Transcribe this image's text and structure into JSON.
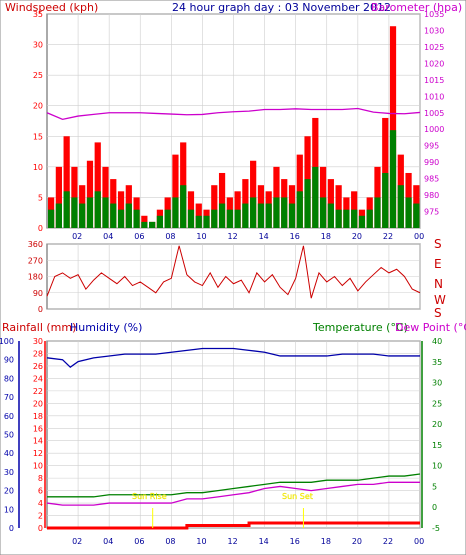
{
  "header": {
    "windspeed_label": "Windspeed (kph)",
    "title": "24 hour graph day : 03 November 2012",
    "barometer_label": "Barometer (hpa)"
  },
  "middle": {
    "compass_labels": [
      "S",
      "E",
      "N",
      "W",
      "S"
    ]
  },
  "lower_header": {
    "rainfall_label": "Rainfall (mm)",
    "humidity_label": "Humidity (%)",
    "temperature_label": "Temperature (°C)",
    "dewpoint_label": "Dew Point (°C)"
  },
  "annotations": {
    "sunrise": "Sun Rise",
    "sunset": "Sun Set"
  },
  "colors": {
    "wind_gust": "#ff0000",
    "wind_avg": "#008000",
    "wind_dir": "#cc0000",
    "barometer": "#cc00cc",
    "humidity": "#0000aa",
    "temperature": "#008000",
    "dewpoint": "#cc00cc",
    "rain": "#ff0000",
    "sun_marker": "#ffff00",
    "grid": "#cfcfcf",
    "title": "#000099"
  },
  "chart_data": [
    {
      "id": "wind",
      "type": "bar",
      "grid": true,
      "x_ticks": [
        "02",
        "04",
        "06",
        "08",
        "10",
        "12",
        "14",
        "16",
        "18",
        "20",
        "22",
        "00"
      ],
      "xlim_hours": [
        0,
        24
      ],
      "left_axis": {
        "label": "Windspeed (kph)",
        "ylim": [
          0,
          35
        ],
        "ticks": [
          0,
          5,
          10,
          15,
          20,
          25,
          30,
          35
        ]
      },
      "right_axis": {
        "label": "Barometer (hpa)",
        "ylim": [
          970,
          1035
        ],
        "ticks": [
          975,
          980,
          985,
          990,
          995,
          1000,
          1005,
          1010,
          1015,
          1020,
          1025,
          1030,
          1035
        ]
      },
      "series": [
        {
          "name": "Gust",
          "hours": [
            0.0,
            0.5,
            1.0,
            1.5,
            2.0,
            2.5,
            3.0,
            3.5,
            4.0,
            4.5,
            5.0,
            5.5,
            6.0,
            6.5,
            7.0,
            7.5,
            8.0,
            8.5,
            9.0,
            9.5,
            10.0,
            10.5,
            11.0,
            11.5,
            12.0,
            12.5,
            13.0,
            13.5,
            14.0,
            14.5,
            15.0,
            15.5,
            16.0,
            16.5,
            17.0,
            17.5,
            18.0,
            18.5,
            19.0,
            19.5,
            20.0,
            20.5,
            21.0,
            21.5,
            22.0,
            22.5,
            23.0,
            23.5
          ],
          "values": [
            5,
            10,
            15,
            10,
            7,
            11,
            14,
            10,
            8,
            6,
            7,
            5,
            2,
            1,
            3,
            5,
            12,
            14,
            6,
            4,
            3,
            7,
            9,
            5,
            6,
            8,
            11,
            7,
            6,
            10,
            8,
            7,
            12,
            15,
            18,
            10,
            8,
            7,
            5,
            6,
            3,
            5,
            10,
            18,
            33,
            12,
            9,
            7
          ]
        },
        {
          "name": "Average",
          "hours": [
            0.0,
            0.5,
            1.0,
            1.5,
            2.0,
            2.5,
            3.0,
            3.5,
            4.0,
            4.5,
            5.0,
            5.5,
            6.0,
            6.5,
            7.0,
            7.5,
            8.0,
            8.5,
            9.0,
            9.5,
            10.0,
            10.5,
            11.0,
            11.5,
            12.0,
            12.5,
            13.0,
            13.5,
            14.0,
            14.5,
            15.0,
            15.5,
            16.0,
            16.5,
            17.0,
            17.5,
            18.0,
            18.5,
            19.0,
            19.5,
            20.0,
            20.5,
            21.0,
            21.5,
            22.0,
            22.5,
            23.0,
            23.5
          ],
          "values": [
            3,
            4,
            6,
            5,
            4,
            5,
            6,
            5,
            4,
            3,
            4,
            3,
            1,
            1,
            2,
            3,
            5,
            7,
            3,
            2,
            2,
            3,
            4,
            3,
            3,
            4,
            5,
            4,
            4,
            5,
            5,
            4,
            6,
            8,
            10,
            5,
            4,
            3,
            3,
            3,
            2,
            3,
            5,
            9,
            16,
            7,
            5,
            4
          ]
        },
        {
          "name": "Barometer",
          "axis": "right",
          "hours": [
            0,
            1,
            2,
            3,
            4,
            5,
            6,
            7,
            8,
            9,
            10,
            11,
            12,
            13,
            14,
            15,
            16,
            17,
            18,
            19,
            20,
            21,
            22,
            23,
            24
          ],
          "values": [
            1005,
            1003,
            1004,
            1004.5,
            1005,
            1005,
            1005,
            1004.8,
            1004.6,
            1004.4,
            1004.5,
            1005,
            1005.3,
            1005.5,
            1006,
            1006,
            1006.2,
            1006,
            1006,
            1006,
            1006.3,
            1005.2,
            1004.8,
            1004.7,
            1005.1
          ]
        }
      ]
    },
    {
      "id": "direction",
      "type": "line",
      "grid": true,
      "left_axis": {
        "ylim": [
          0,
          360
        ],
        "ticks": [
          0,
          90,
          180,
          270,
          360
        ]
      },
      "series": [
        {
          "name": "Wind Direction",
          "hours": [
            0.0,
            0.5,
            1.0,
            1.5,
            2.0,
            2.5,
            3.0,
            3.5,
            4.0,
            4.5,
            5.0,
            5.5,
            6.0,
            6.5,
            7.0,
            7.5,
            8.0,
            8.5,
            9.0,
            9.5,
            10.0,
            10.5,
            11.0,
            11.5,
            12.0,
            12.5,
            13.0,
            13.5,
            14.0,
            14.5,
            15.0,
            15.5,
            16.0,
            16.5,
            17.0,
            17.5,
            18.0,
            18.5,
            19.0,
            19.5,
            20.0,
            20.5,
            21.0,
            21.5,
            22.0,
            22.5,
            23.0,
            23.5,
            24.0
          ],
          "values": [
            70,
            180,
            200,
            170,
            190,
            110,
            160,
            200,
            170,
            140,
            180,
            130,
            150,
            120,
            90,
            150,
            170,
            350,
            190,
            150,
            130,
            200,
            120,
            180,
            140,
            160,
            90,
            200,
            150,
            190,
            120,
            80,
            170,
            350,
            60,
            200,
            150,
            180,
            130,
            170,
            100,
            150,
            190,
            230,
            200,
            220,
            180,
            110,
            90
          ]
        }
      ]
    },
    {
      "id": "climate",
      "type": "line",
      "grid": true,
      "x_ticks": [
        "02",
        "04",
        "06",
        "08",
        "10",
        "12",
        "14",
        "16",
        "18",
        "20",
        "22",
        "00"
      ],
      "xlim_hours": [
        0,
        24
      ],
      "left_axis": {
        "label": "Rainfall (mm)",
        "ylim": [
          0,
          30
        ],
        "ticks": [
          0,
          2,
          4,
          6,
          8,
          10,
          12,
          14,
          16,
          18,
          20,
          22,
          24,
          26,
          28,
          30
        ]
      },
      "humidity_axis": {
        "label": "Humidity (%)",
        "ylim": [
          0,
          100
        ],
        "ticks": [
          0,
          10,
          20,
          30,
          40,
          50,
          60,
          70,
          80,
          90,
          100
        ]
      },
      "right_axis": {
        "label": "Temperature (°C)",
        "ylim": [
          -5,
          40
        ],
        "ticks": [
          -5,
          0,
          5,
          10,
          15,
          20,
          25,
          30,
          35,
          40
        ]
      },
      "series": [
        {
          "name": "Humidity",
          "hours": [
            0,
            1,
            1.5,
            2,
            3,
            4,
            5,
            6,
            7,
            8,
            9,
            10,
            11,
            12,
            13,
            14,
            15,
            16,
            17,
            18,
            19,
            20,
            21,
            22,
            23,
            24
          ],
          "values": [
            91,
            90,
            86,
            89,
            91,
            92,
            93,
            93,
            93,
            94,
            95,
            96,
            96,
            96,
            95,
            94,
            92,
            92,
            92,
            92,
            93,
            93,
            93,
            92,
            92,
            92
          ]
        },
        {
          "name": "Temperature",
          "hours": [
            0,
            1,
            2,
            3,
            4,
            5,
            6,
            7,
            8,
            9,
            10,
            11,
            12,
            13,
            14,
            15,
            16,
            17,
            18,
            19,
            20,
            21,
            22,
            23,
            24
          ],
          "values": [
            2.5,
            2.5,
            2.5,
            2.5,
            3,
            3,
            3,
            3,
            3,
            3.5,
            3.5,
            4,
            4.5,
            5,
            5.5,
            6,
            6,
            6,
            6.5,
            6.5,
            6.5,
            7,
            7.5,
            7.5,
            8
          ]
        },
        {
          "name": "Dew Point",
          "hours": [
            0,
            1,
            2,
            3,
            4,
            5,
            6,
            7,
            8,
            9,
            10,
            11,
            12,
            13,
            14,
            15,
            16,
            17,
            18,
            19,
            20,
            21,
            22,
            23,
            24
          ],
          "values": [
            1,
            0.5,
            0.5,
            0.5,
            1,
            1,
            1,
            1,
            1,
            2,
            2,
            2.5,
            3,
            3.5,
            4.5,
            5,
            4.5,
            4,
            4.5,
            5,
            5.5,
            5.5,
            6,
            6,
            6
          ]
        },
        {
          "name": "Rainfall",
          "axis": "left",
          "hours": [
            0,
            9,
            9,
            13,
            13,
            24
          ],
          "values": [
            0,
            0,
            0.4,
            0.4,
            0.8,
            0.8
          ]
        }
      ],
      "markers": [
        {
          "name": "Sun Rise",
          "hour": 6.8
        },
        {
          "name": "Sun Set",
          "hour": 16.5
        }
      ]
    }
  ]
}
